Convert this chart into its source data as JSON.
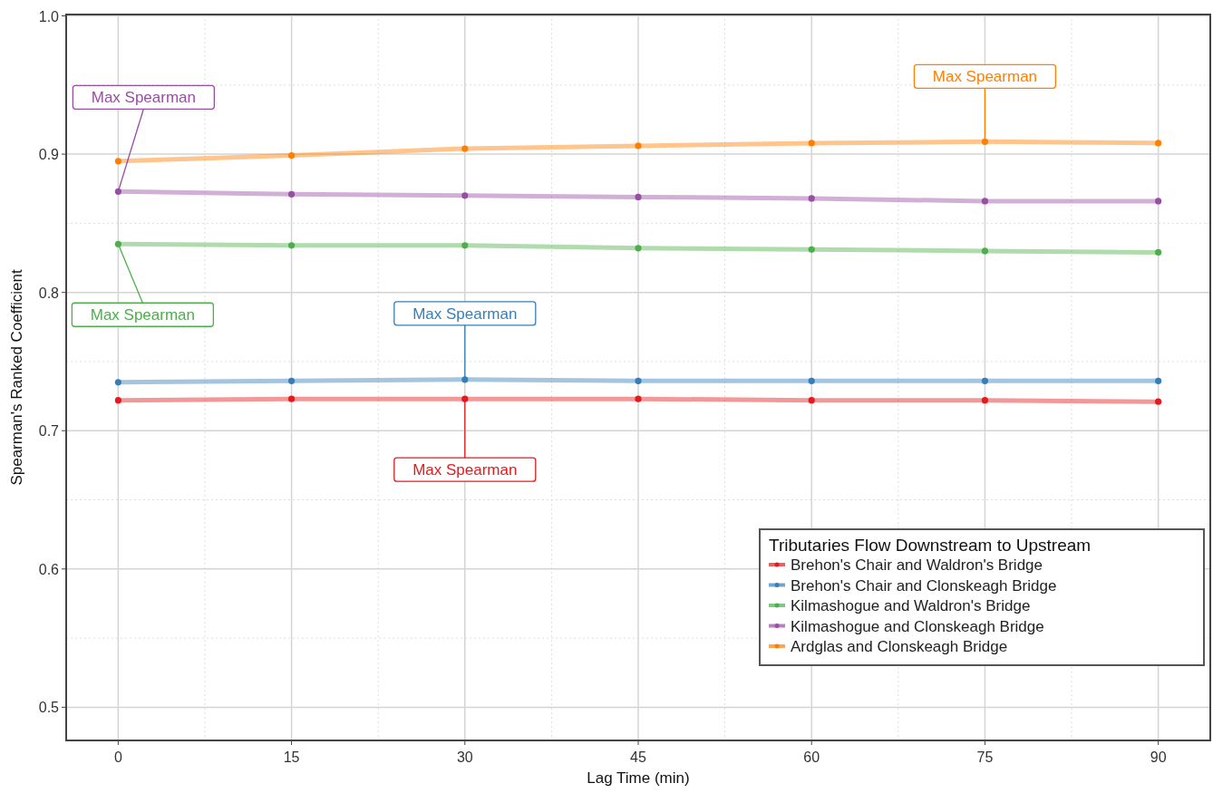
{
  "chart_data": {
    "type": "line",
    "xlabel": "Lag Time (min)",
    "ylabel": "Spearman's Ranked Coefficient",
    "legend_title": "Tributaries Flow Downstream to Upstream",
    "x": [
      0,
      15,
      30,
      45,
      60,
      75,
      90
    ],
    "series": [
      {
        "name": "Brehon's Chair and Waldron's Bridge",
        "color": "#e41a1c",
        "values": [
          0.722,
          0.723,
          0.723,
          0.723,
          0.722,
          0.722,
          0.721
        ]
      },
      {
        "name": "Brehon's Chair and Clonskeagh Bridge",
        "color": "#377eb8",
        "values": [
          0.735,
          0.736,
          0.737,
          0.736,
          0.736,
          0.736,
          0.736
        ]
      },
      {
        "name": "Kilmashogue and Waldron's Bridge",
        "color": "#4daf4a",
        "values": [
          0.835,
          0.834,
          0.834,
          0.832,
          0.831,
          0.83,
          0.829
        ]
      },
      {
        "name": "Kilmashogue and Clonskeagh Bridge",
        "color": "#984ea3",
        "values": [
          0.873,
          0.871,
          0.87,
          0.869,
          0.868,
          0.866,
          0.866
        ]
      },
      {
        "name": "Ardglas and Clonskeagh Bridge",
        "color": "#ff7f00",
        "values": [
          0.895,
          0.899,
          0.904,
          0.906,
          0.908,
          0.909,
          0.908
        ]
      }
    ],
    "xlim": [
      -4.5,
      94.5
    ],
    "xticks": [
      0,
      15,
      30,
      45,
      60,
      75,
      90
    ],
    "ylim": [
      0.476,
      1.001
    ],
    "yticks": [
      {
        "value": 0.5,
        "label": "0.5"
      },
      {
        "value": 0.6,
        "label": "0.6"
      },
      {
        "value": 0.7,
        "label": "0.7"
      },
      {
        "value": 0.8,
        "label": "0.8"
      },
      {
        "value": 0.9,
        "label": "0.9"
      },
      {
        "value": 1.0,
        "label": "1.0"
      }
    ],
    "annotations": [
      {
        "text": "Max Spearman",
        "x": 0,
        "y": 0.873
      },
      {
        "text": "Max Spearman",
        "x": 75,
        "y": 0.909
      },
      {
        "text": "Max Spearman",
        "x": 0,
        "y": 0.835
      },
      {
        "text": "Max Spearman",
        "x": 30,
        "y": 0.737
      },
      {
        "text": "Max Spearman",
        "x": 30,
        "y": 0.723
      }
    ],
    "grid": true,
    "legend": "bottom right",
    "marker": "circle",
    "line_style": "solid"
  }
}
